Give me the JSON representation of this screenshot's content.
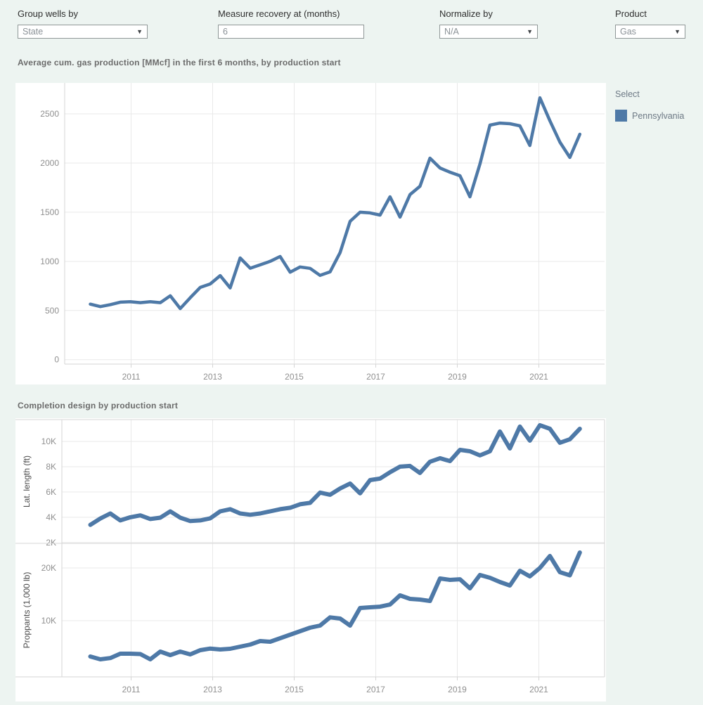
{
  "controls": {
    "group_wells_by": {
      "label": "Group wells by",
      "value": "State"
    },
    "measure_recovery": {
      "label": "Measure recovery at (months)",
      "value": "6"
    },
    "normalize_by": {
      "label": "Normalize by",
      "value": "N/A"
    },
    "product": {
      "label": "Product",
      "value": "Gas"
    }
  },
  "section1_title": "Average cum. gas production [MMcf] in the first 6 months, by production start",
  "section2_title": "Completion design by production start",
  "legend": {
    "title": "Select",
    "items": [
      {
        "label": "Pennsylvania",
        "color": "#4e79a7"
      }
    ]
  },
  "colors": {
    "accent": "#4e79a7",
    "page_bg": "#edf4f1",
    "panel_bg": "#ffffff",
    "gridline": "#e9e9e9",
    "axis_line": "#d5d5d5",
    "tick_label": "#8f8f8f"
  },
  "chart_data": [
    {
      "type": "line",
      "title": "Average cum. gas production [MMcf] in the first 6 months, by production start",
      "xlabel": "",
      "ylabel": "",
      "x_start": 2010.0,
      "x_step": 0.25,
      "xticks": [
        2011,
        2013,
        2015,
        2017,
        2019,
        2021
      ],
      "ylim": [
        -45,
        2815
      ],
      "yticks": [
        {
          "v": 0,
          "label": "0"
        },
        {
          "v": 500,
          "label": "500"
        },
        {
          "v": 1000,
          "label": "1000"
        },
        {
          "v": 1500,
          "label": "1500"
        },
        {
          "v": 2000,
          "label": "2000"
        },
        {
          "v": 2500,
          "label": "2500"
        }
      ],
      "grid": true,
      "legend_position": "right",
      "series": [
        {
          "name": "Pennsylvania",
          "color": "#4e79a7",
          "values": [
            565,
            540,
            560,
            585,
            590,
            580,
            590,
            580,
            650,
            520,
            630,
            735,
            770,
            855,
            730,
            1035,
            930,
            965,
            1000,
            1050,
            890,
            943,
            929,
            857,
            893,
            1090,
            1407,
            1500,
            1493,
            1471,
            1657,
            1450,
            1679,
            1764,
            2050,
            1950,
            1907,
            1871,
            1657,
            1990,
            2386,
            2407,
            2400,
            2379,
            2179,
            2664,
            2430,
            2214,
            2057,
            2293
          ]
        }
      ]
    },
    {
      "type": "line",
      "title": "Completion design by production start",
      "xlabel": "",
      "ylabel": "Lat. length (ft)",
      "x_start": 2010.0,
      "x_step": 0.25,
      "xticks": [
        2011,
        2013,
        2015,
        2017,
        2019,
        2021
      ],
      "ylim": [
        1940,
        11720
      ],
      "yticks": [
        {
          "v": 2000,
          "label": "2K"
        },
        {
          "v": 4000,
          "label": "4K"
        },
        {
          "v": 6000,
          "label": "6K"
        },
        {
          "v": 8000,
          "label": "8K"
        },
        {
          "v": 10000,
          "label": "10K"
        }
      ],
      "grid": true,
      "series": [
        {
          "name": "Pennsylvania",
          "color": "#4e79a7",
          "values": [
            3400,
            3900,
            4300,
            3750,
            4000,
            4150,
            3860,
            3970,
            4470,
            3970,
            3700,
            3750,
            3920,
            4470,
            4640,
            4300,
            4200,
            4300,
            4470,
            4640,
            4750,
            5030,
            5140,
            5950,
            5780,
            6280,
            6670,
            5890,
            6940,
            7060,
            7560,
            8000,
            8060,
            7500,
            8390,
            8670,
            8440,
            9330,
            9220,
            8890,
            9220,
            10780,
            9440,
            11170,
            10060,
            11280,
            11000,
            9890,
            10170,
            11000
          ]
        }
      ]
    },
    {
      "type": "line",
      "title": "Completion design by production start",
      "xlabel": "",
      "ylabel": "Proppants (1,000 lb)",
      "x_start": 2010.0,
      "x_step": 0.25,
      "xticks": [
        2011,
        2013,
        2015,
        2017,
        2019,
        2021
      ],
      "ylim": [
        -670,
        24670
      ],
      "yticks": [
        {
          "v": 10000,
          "label": "10K"
        },
        {
          "v": 20000,
          "label": "20K"
        }
      ],
      "grid": true,
      "series": [
        {
          "name": "Pennsylvania",
          "color": "#4e79a7",
          "values": [
            3200,
            2670,
            2900,
            3730,
            3730,
            3670,
            2670,
            4130,
            3470,
            4130,
            3600,
            4400,
            4700,
            4530,
            4670,
            5070,
            5470,
            6130,
            6000,
            6670,
            7330,
            8000,
            8670,
            9070,
            10630,
            10400,
            9070,
            12400,
            12530,
            12660,
            13060,
            14800,
            14130,
            14000,
            13730,
            18000,
            17730,
            17860,
            16130,
            18670,
            18130,
            17330,
            16670,
            19470,
            18400,
            20000,
            22270,
            19200,
            18600,
            22930
          ]
        }
      ]
    }
  ]
}
